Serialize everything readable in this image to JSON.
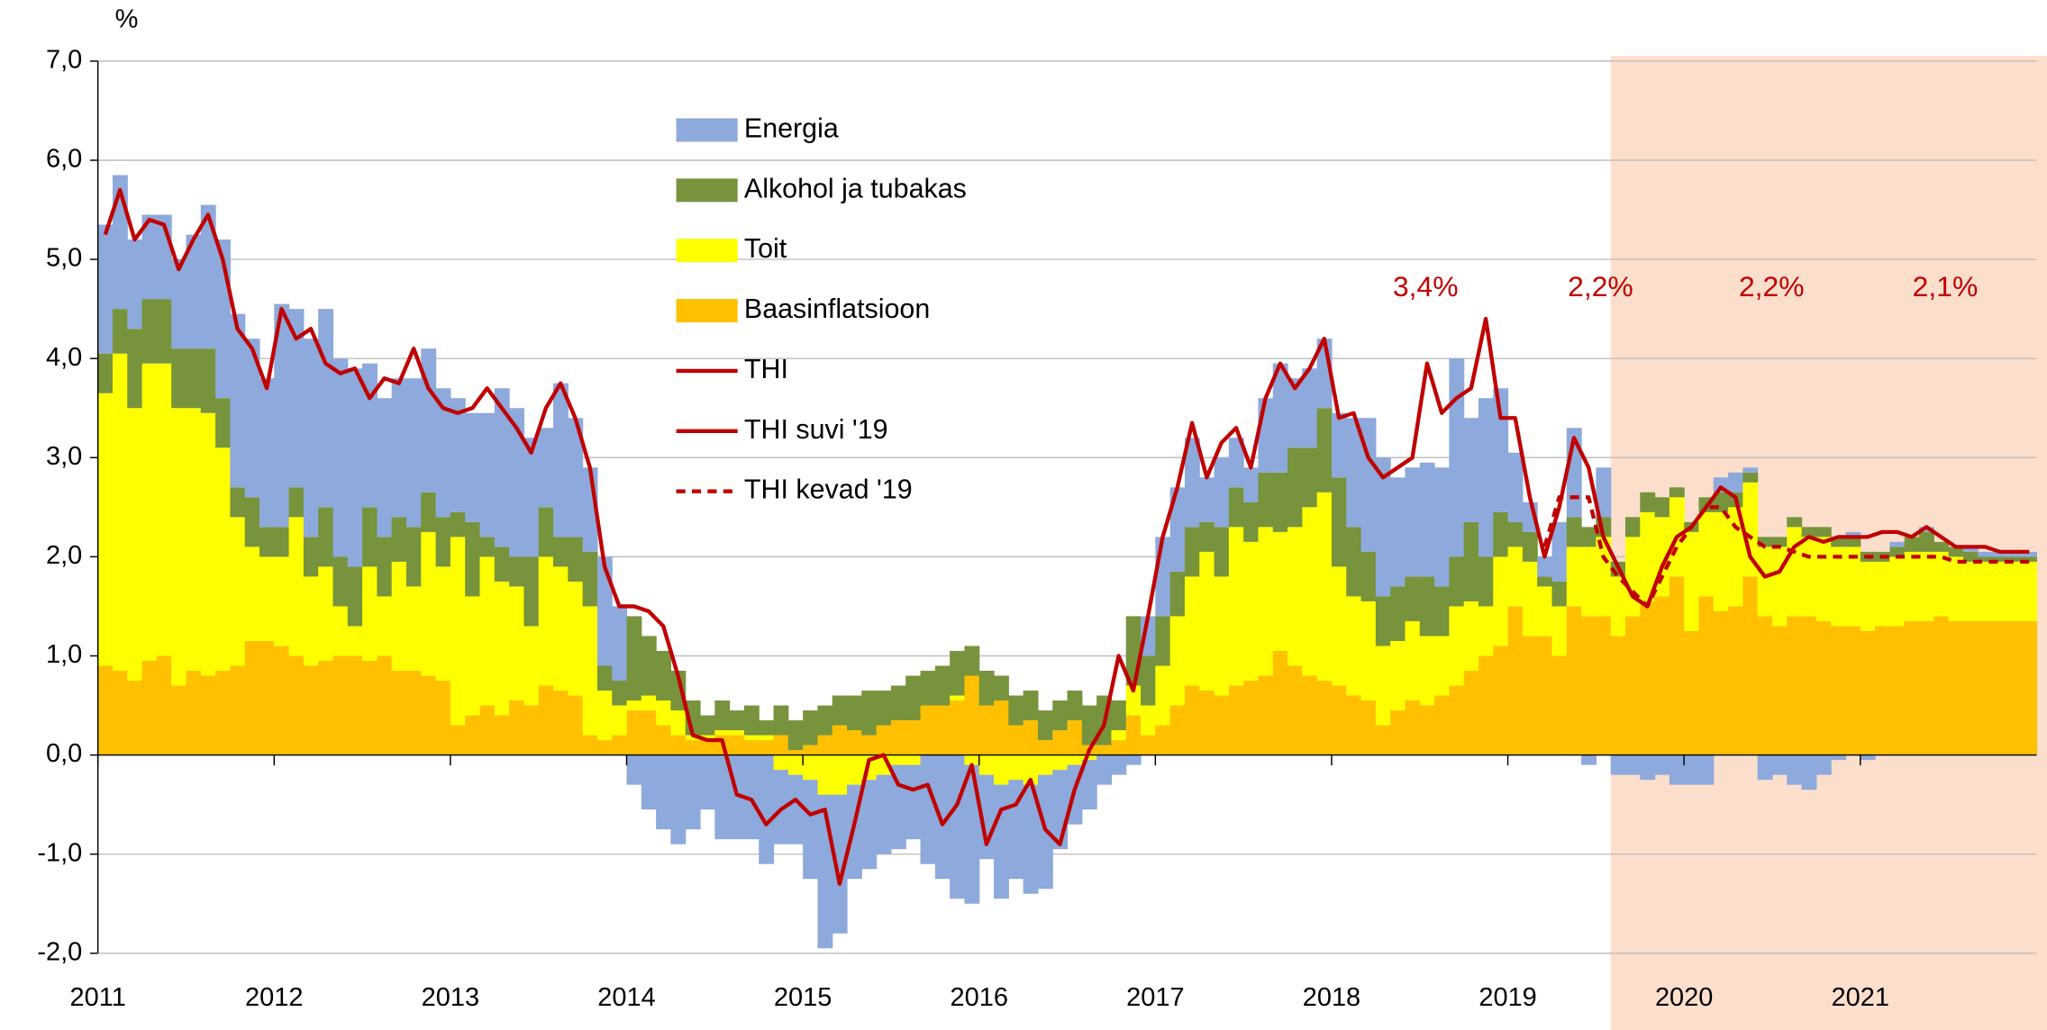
{
  "chart_data": {
    "type": "bar",
    "stacked": true,
    "y_label": "%",
    "categories": [
      "2011",
      null,
      null,
      null,
      null,
      null,
      null,
      null,
      null,
      null,
      null,
      null,
      "2012",
      null,
      null,
      null,
      null,
      null,
      null,
      null,
      null,
      null,
      null,
      null,
      "2013",
      null,
      null,
      null,
      null,
      null,
      null,
      null,
      null,
      null,
      null,
      null,
      "2014",
      null,
      null,
      null,
      null,
      null,
      null,
      null,
      null,
      null,
      null,
      null,
      "2015",
      null,
      null,
      null,
      null,
      null,
      null,
      null,
      null,
      null,
      null,
      null,
      "2016",
      null,
      null,
      null,
      null,
      null,
      null,
      null,
      null,
      null,
      null,
      null,
      "2017",
      null,
      null,
      null,
      null,
      null,
      null,
      null,
      null,
      null,
      null,
      null,
      "2018",
      null,
      null,
      null,
      null,
      null,
      null,
      null,
      null,
      null,
      null,
      null,
      "2019",
      null,
      null,
      null,
      null,
      null,
      null,
      null,
      null,
      null,
      null,
      null,
      "2020",
      null,
      null,
      null,
      null,
      null,
      null,
      null,
      null,
      null,
      null,
      null,
      "2021",
      null,
      null,
      null,
      null,
      null,
      null,
      null,
      null,
      null,
      null,
      null
    ],
    "series": [
      {
        "name": "Energia",
        "type": "bar",
        "color": "#8EA9DB",
        "values": [
          1.3,
          1.35,
          0.9,
          0.85,
          0.85,
          0.9,
          1.15,
          1.45,
          1.6,
          1.75,
          1.6,
          1.5,
          2.25,
          1.8,
          2.0,
          2.0,
          2.0,
          2.0,
          1.45,
          1.4,
          1.4,
          1.5,
          1.45,
          1.3,
          1.15,
          1.1,
          1.25,
          1.6,
          1.5,
          1.2,
          0.8,
          1.55,
          1.2,
          0.85,
          1.1,
          0.75,
          -0.3,
          -0.55,
          -0.75,
          -0.9,
          -0.75,
          -0.55,
          -0.85,
          -0.85,
          -0.85,
          -1.1,
          -0.75,
          -0.7,
          -1.0,
          -1.55,
          -1.4,
          -0.95,
          -0.9,
          -0.8,
          -0.85,
          -0.75,
          -1.1,
          -1.25,
          -1.45,
          -1.4,
          -0.85,
          -1.15,
          -1.0,
          -1.1,
          -1.15,
          -0.8,
          -0.6,
          -0.5,
          -0.3,
          -0.2,
          -0.1,
          0.4,
          0.8,
          0.85,
          0.9,
          0.45,
          0.7,
          0.5,
          0.35,
          0.75,
          1.1,
          0.7,
          0.8,
          0.7,
          0.65,
          1.1,
          1.35,
          1.4,
          1.1,
          1.1,
          1.15,
          1.2,
          2.0,
          1.05,
          1.6,
          1.25,
          0.7,
          0.3,
          0.2,
          0.6,
          0.9,
          -0.1,
          0.5,
          -0.2,
          -0.2,
          -0.25,
          -0.2,
          -0.3,
          -0.3,
          -0.3,
          0.15,
          0.2,
          0.05,
          -0.25,
          -0.2,
          -0.3,
          -0.35,
          -0.2,
          -0.05,
          0.05,
          -0.05,
          0,
          0.05,
          0,
          0.05,
          0,
          0,
          0.05,
          0.05,
          0.05,
          0.05,
          0.05
        ]
      },
      {
        "name": "Alkohol ja tubakas",
        "type": "bar",
        "color": "#77933C",
        "values": [
          0.4,
          0.45,
          0.8,
          0.65,
          0.65,
          0.6,
          0.6,
          0.65,
          0.5,
          0.3,
          0.5,
          0.3,
          0.3,
          0.3,
          0.4,
          0.6,
          0.5,
          0.6,
          0.6,
          0.6,
          0.45,
          0.6,
          0.4,
          0.5,
          0.25,
          0.75,
          0.2,
          0.35,
          0.3,
          0.7,
          0.5,
          0.3,
          0.45,
          0.55,
          0.25,
          0.25,
          0.85,
          0.6,
          0.5,
          0.4,
          0.35,
          0.2,
          0.3,
          0.2,
          0.3,
          0.15,
          0.3,
          0.3,
          0.35,
          0.3,
          0.3,
          0.35,
          0.45,
          0.35,
          0.35,
          0.45,
          0.35,
          0.4,
          0.45,
          0.3,
          0.35,
          0.25,
          0.3,
          0.3,
          0.3,
          0.3,
          0.3,
          0.4,
          0.5,
          0.3,
          0.7,
          0.5,
          0.5,
          0.45,
          0.5,
          0.3,
          0.5,
          0.4,
          0.4,
          0.55,
          0.6,
          0.8,
          0.6,
          0.85,
          0.9,
          0.7,
          0.5,
          0.5,
          0.55,
          0.45,
          0.6,
          0.5,
          0.5,
          0.8,
          0.5,
          0.45,
          0.25,
          0.3,
          0.1,
          0.25,
          0.3,
          0.2,
          0.2,
          0.15,
          0.2,
          0.2,
          0.2,
          0.1,
          0.1,
          0.15,
          0.2,
          0.15,
          0.1,
          0.1,
          0.1,
          0.1,
          0.1,
          0.1,
          0.1,
          0.1,
          0.1,
          0.1,
          0.1,
          0.15,
          0.2,
          0.1,
          0.1,
          0.1,
          0.05,
          0.05,
          0.05,
          0.05
        ]
      },
      {
        "name": "Toit",
        "type": "bar",
        "color": "#FFFF00",
        "values": [
          2.75,
          3.2,
          2.75,
          3.0,
          2.95,
          2.8,
          2.65,
          2.65,
          2.25,
          1.5,
          0.95,
          0.85,
          0.9,
          1.4,
          0.9,
          0.95,
          0.5,
          0.3,
          0.95,
          0.6,
          1.1,
          0.85,
          1.45,
          1.15,
          1.9,
          1.2,
          1.5,
          1.35,
          1.15,
          0.8,
          1.3,
          1.25,
          1.15,
          1.3,
          0.5,
          0.3,
          0.1,
          0.15,
          0.25,
          0.25,
          0.05,
          0.05,
          0.05,
          0.05,
          0.05,
          0.05,
          -0.15,
          -0.2,
          -0.25,
          -0.4,
          -0.4,
          -0.3,
          -0.25,
          -0.2,
          -0.1,
          -0.1,
          0,
          0,
          0.05,
          -0.1,
          -0.2,
          -0.3,
          -0.25,
          -0.3,
          -0.2,
          -0.15,
          -0.1,
          -0.05,
          0,
          0.1,
          0.3,
          0.3,
          0.6,
          0.9,
          1.1,
          1.4,
          1.2,
          1.6,
          1.4,
          1.5,
          1.2,
          1.4,
          1.7,
          1.9,
          1.2,
          1.0,
          1.0,
          0.8,
          0.7,
          0.8,
          0.7,
          0.6,
          0.8,
          0.7,
          0.5,
          0.9,
          0.6,
          0.75,
          0.5,
          0.5,
          0.6,
          0.7,
          0.8,
          0.6,
          0.8,
          0.9,
          0.8,
          0.8,
          1.0,
          0.85,
          1.0,
          1.0,
          0.95,
          0.7,
          0.8,
          0.9,
          0.8,
          0.85,
          0.8,
          0.8,
          0.7,
          0.65,
          0.7,
          0.7,
          0.7,
          0.65,
          0.65,
          0.6,
          0.6,
          0.6,
          0.6,
          0.6
        ]
      },
      {
        "name": "Baasinflatsioon",
        "type": "bar",
        "color": "#FFC000",
        "values": [
          0.9,
          0.85,
          0.75,
          0.95,
          1.0,
          0.7,
          0.85,
          0.8,
          0.85,
          0.9,
          1.15,
          1.15,
          1.1,
          1.0,
          0.9,
          0.95,
          1.0,
          1.0,
          0.95,
          1.0,
          0.85,
          0.85,
          0.8,
          0.75,
          0.3,
          0.4,
          0.5,
          0.4,
          0.55,
          0.5,
          0.7,
          0.65,
          0.6,
          0.2,
          0.15,
          0.2,
          0.45,
          0.45,
          0.3,
          0.2,
          0.15,
          0.15,
          0.2,
          0.2,
          0.15,
          0.15,
          0.2,
          0.05,
          0.1,
          0.2,
          0.3,
          0.25,
          0.2,
          0.3,
          0.35,
          0.35,
          0.5,
          0.5,
          0.55,
          0.8,
          0.5,
          0.55,
          0.3,
          0.35,
          0.15,
          0.25,
          0.35,
          0.1,
          0.1,
          0.15,
          0.4,
          0.2,
          0.3,
          0.5,
          0.7,
          0.65,
          0.6,
          0.7,
          0.75,
          0.8,
          1.05,
          0.9,
          0.8,
          0.75,
          0.7,
          0.6,
          0.55,
          0.3,
          0.45,
          0.55,
          0.5,
          0.6,
          0.7,
          0.85,
          1.0,
          1.1,
          1.5,
          1.2,
          1.2,
          1.0,
          1.5,
          1.4,
          1.4,
          1.2,
          1.4,
          1.55,
          1.6,
          1.8,
          1.25,
          1.6,
          1.45,
          1.5,
          1.8,
          1.4,
          1.3,
          1.4,
          1.4,
          1.35,
          1.3,
          1.3,
          1.25,
          1.3,
          1.3,
          1.35,
          1.35,
          1.4,
          1.35,
          1.35,
          1.35,
          1.35,
          1.35,
          1.35
        ]
      },
      {
        "name": "THI",
        "type": "line",
        "color": "#C00000",
        "dashed": false,
        "values": [
          5.25,
          5.7,
          5.2,
          5.4,
          5.35,
          4.9,
          5.2,
          5.45,
          5.0,
          4.3,
          4.1,
          3.7,
          4.5,
          4.2,
          4.3,
          3.95,
          3.85,
          3.9,
          3.6,
          3.8,
          3.75,
          4.1,
          3.7,
          3.5,
          3.45,
          3.5,
          3.7,
          3.5,
          3.3,
          3.05,
          3.5,
          3.75,
          3.4,
          2.9,
          1.9,
          1.5,
          1.5,
          1.45,
          1.3,
          0.8,
          0.2,
          0.15,
          0.15,
          -0.4,
          -0.45,
          -0.7,
          -0.55,
          -0.45,
          -0.6,
          -0.55,
          -1.3,
          -0.7,
          -0.05,
          0.0,
          -0.3,
          -0.35,
          -0.3,
          -0.7,
          -0.5,
          -0.1,
          -0.9,
          -0.55,
          -0.5,
          -0.25,
          -0.75,
          -0.9,
          -0.35,
          0.05,
          0.3,
          1.0,
          0.65,
          1.4,
          2.2,
          2.7,
          3.35,
          2.8,
          3.15,
          3.3,
          2.9,
          3.6,
          3.95,
          3.7,
          3.9,
          4.2,
          3.4,
          3.45,
          3.0,
          2.8,
          2.9,
          3.0,
          3.95,
          3.45,
          3.6,
          3.7,
          4.4,
          3.4,
          3.4,
          2.6,
          2.0,
          2.5,
          3.2,
          2.9,
          2.2,
          null,
          null,
          null,
          null,
          null,
          null,
          null,
          null,
          null,
          null,
          null,
          null,
          null,
          null,
          null,
          null,
          null,
          null,
          null,
          null,
          null,
          null,
          null,
          null,
          null,
          null,
          null,
          null,
          null
        ]
      },
      {
        "name": "THI suvi '19",
        "type": "line",
        "color": "#C00000",
        "dashed": false,
        "values": [
          null,
          null,
          null,
          null,
          null,
          null,
          null,
          null,
          null,
          null,
          null,
          null,
          null,
          null,
          null,
          null,
          null,
          null,
          null,
          null,
          null,
          null,
          null,
          null,
          null,
          null,
          null,
          null,
          null,
          null,
          null,
          null,
          null,
          null,
          null,
          null,
          null,
          null,
          null,
          null,
          null,
          null,
          null,
          null,
          null,
          null,
          null,
          null,
          null,
          null,
          null,
          null,
          null,
          null,
          null,
          null,
          null,
          null,
          null,
          null,
          null,
          null,
          null,
          null,
          null,
          null,
          null,
          null,
          null,
          null,
          null,
          null,
          null,
          null,
          null,
          null,
          null,
          null,
          null,
          null,
          null,
          null,
          null,
          null,
          null,
          null,
          null,
          null,
          null,
          null,
          null,
          null,
          null,
          null,
          null,
          null,
          null,
          null,
          null,
          null,
          null,
          null,
          2.2,
          1.9,
          1.6,
          1.5,
          1.9,
          2.2,
          2.3,
          2.5,
          2.7,
          2.6,
          2.0,
          1.8,
          1.85,
          2.1,
          2.2,
          2.15,
          2.2,
          2.2,
          2.2,
          2.25,
          2.25,
          2.2,
          2.3,
          2.2,
          2.1,
          2.1,
          2.1,
          2.05,
          2.05,
          2.05
        ]
      },
      {
        "name": "THI kevad '19",
        "type": "line",
        "color": "#C00000",
        "dashed": true,
        "values": [
          null,
          null,
          null,
          null,
          null,
          null,
          null,
          null,
          null,
          null,
          null,
          null,
          null,
          null,
          null,
          null,
          null,
          null,
          null,
          null,
          null,
          null,
          null,
          null,
          null,
          null,
          null,
          null,
          null,
          null,
          null,
          null,
          null,
          null,
          null,
          null,
          null,
          null,
          null,
          null,
          null,
          null,
          null,
          null,
          null,
          null,
          null,
          null,
          null,
          null,
          null,
          null,
          null,
          null,
          null,
          null,
          null,
          null,
          null,
          null,
          null,
          null,
          null,
          null,
          null,
          null,
          null,
          null,
          null,
          null,
          null,
          null,
          null,
          null,
          null,
          null,
          null,
          null,
          null,
          null,
          null,
          null,
          null,
          null,
          null,
          null,
          null,
          null,
          null,
          null,
          null,
          null,
          null,
          null,
          null,
          null,
          null,
          null,
          2.1,
          2.6,
          2.6,
          2.6,
          2.0,
          1.8,
          1.65,
          1.5,
          1.8,
          2.1,
          2.3,
          2.5,
          2.5,
          2.3,
          2.2,
          2.1,
          2.1,
          2.05,
          2.0,
          2.0,
          2.0,
          2.0,
          2.0,
          2.0,
          2.0,
          2.0,
          2.0,
          2.0,
          1.95,
          1.95,
          1.95,
          1.95,
          1.95,
          1.95
        ]
      }
    ],
    "ylim": [
      -2,
      7
    ],
    "yticks": [
      {
        "value": -2,
        "label": "-2,0"
      },
      {
        "value": -1,
        "label": "-1,0"
      },
      {
        "value": 0,
        "label": "0,0"
      },
      {
        "value": 1,
        "label": "1,0"
      },
      {
        "value": 2,
        "label": "2,0"
      },
      {
        "value": 3,
        "label": "3,0"
      },
      {
        "value": 4,
        "label": "4,0"
      },
      {
        "value": 5,
        "label": "5,0"
      },
      {
        "value": 6,
        "label": "6,0"
      },
      {
        "value": 7,
        "label": "7,0"
      }
    ],
    "grid": true,
    "annotations": [
      "3,4%",
      "2,2%",
      "2,2%",
      "2,1%"
    ]
  }
}
